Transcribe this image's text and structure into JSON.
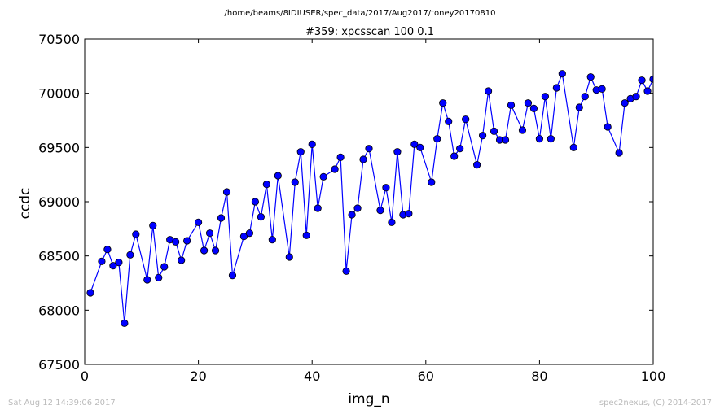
{
  "figure": {
    "suptitle": "/home/beams/8IDIUSER/spec_data/2017/Aug2017/toney20170810",
    "footer_left": "Sat Aug 12 14:39:06 2017",
    "footer_right": "spec2nexus, (C) 2014-2017"
  },
  "chart_data": {
    "type": "line",
    "title": "#359: xpcsscan 100 0.1",
    "xlabel": "img_n",
    "ylabel": "ccdc",
    "xlim": [
      0,
      100
    ],
    "ylim": [
      67500,
      70500
    ],
    "xticks": [
      0,
      20,
      40,
      60,
      80,
      100
    ],
    "yticks": [
      67500,
      68000,
      68500,
      69000,
      69500,
      70000,
      70500
    ],
    "grid": false,
    "line_color": "#0000ff",
    "marker": "circle",
    "series": [
      {
        "x": [
          1,
          3,
          4,
          5,
          6,
          7,
          8,
          9,
          11,
          12,
          13,
          14,
          15,
          16,
          17,
          18,
          20,
          21,
          22,
          23,
          24,
          25,
          26,
          28,
          29,
          30,
          31,
          32,
          33,
          34,
          36,
          37,
          38,
          39,
          40,
          41,
          42,
          44,
          45,
          46,
          47,
          48,
          49,
          50,
          52,
          53,
          54,
          55,
          56,
          57,
          58,
          59,
          61,
          62,
          63,
          64,
          65,
          66,
          67,
          69,
          70,
          71,
          72,
          73,
          74,
          75,
          77,
          78,
          79,
          80,
          81,
          82,
          83,
          84,
          86,
          87,
          88,
          89,
          90,
          91,
          92,
          94,
          95,
          96,
          97,
          98,
          99,
          100
        ],
        "y": [
          68160,
          68450,
          68560,
          68410,
          68440,
          67880,
          68510,
          68700,
          68280,
          68780,
          68300,
          68400,
          68650,
          68630,
          68460,
          68640,
          68810,
          68550,
          68710,
          68550,
          68850,
          69090,
          68320,
          68680,
          68710,
          69000,
          68860,
          69160,
          68650,
          69240,
          68490,
          69180,
          69460,
          68690,
          69530,
          68940,
          69230,
          69300,
          69410,
          68360,
          68880,
          68940,
          69390,
          69490,
          68920,
          69130,
          68810,
          69460,
          68880,
          68890,
          69530,
          69500,
          69180,
          69580,
          69910,
          69740,
          69420,
          69490,
          69760,
          69340,
          69610,
          70020,
          69650,
          69570,
          69570,
          69890,
          69660,
          69910,
          69860,
          69580,
          69970,
          69580,
          70050,
          70180,
          69500,
          69870,
          69970,
          70150,
          70030,
          70040,
          69690,
          69450,
          69910,
          69950,
          69970,
          70120,
          70020,
          70130
        ]
      }
    ]
  }
}
